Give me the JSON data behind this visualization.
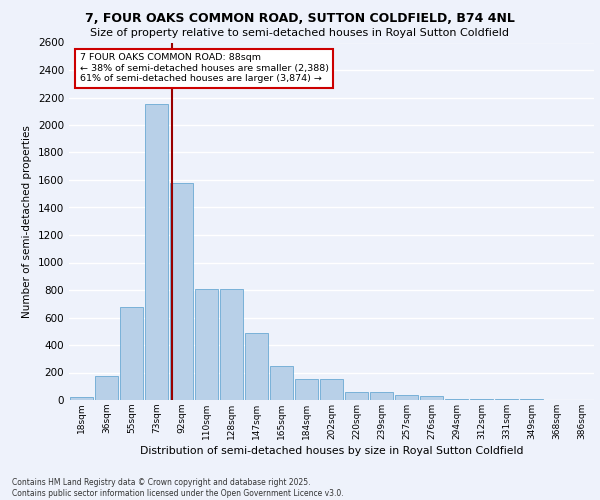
{
  "title": "7, FOUR OAKS COMMON ROAD, SUTTON COLDFIELD, B74 4NL",
  "subtitle": "Size of property relative to semi-detached houses in Royal Sutton Coldfield",
  "xlabel": "Distribution of semi-detached houses by size in Royal Sutton Coldfield",
  "ylabel": "Number of semi-detached properties",
  "categories": [
    "18sqm",
    "36sqm",
    "55sqm",
    "73sqm",
    "92sqm",
    "110sqm",
    "128sqm",
    "147sqm",
    "165sqm",
    "184sqm",
    "202sqm",
    "220sqm",
    "239sqm",
    "257sqm",
    "276sqm",
    "294sqm",
    "312sqm",
    "331sqm",
    "349sqm",
    "368sqm",
    "386sqm"
  ],
  "values": [
    25,
    175,
    675,
    2150,
    1575,
    810,
    810,
    490,
    250,
    150,
    150,
    55,
    55,
    35,
    30,
    10,
    5,
    5,
    5,
    3,
    2
  ],
  "bar_color": "#b8d0e8",
  "bar_edge_color": "#6aaad4",
  "vline_index": 4,
  "annotation_text": "7 FOUR OAKS COMMON ROAD: 88sqm\n← 38% of semi-detached houses are smaller (2,388)\n61% of semi-detached houses are larger (3,874) →",
  "vline_color": "#990000",
  "ylim": [
    0,
    2600
  ],
  "yticks": [
    0,
    200,
    400,
    600,
    800,
    1000,
    1200,
    1400,
    1600,
    1800,
    2000,
    2200,
    2400,
    2600
  ],
  "background_color": "#eef2fb",
  "grid_color": "#ffffff",
  "footer": "Contains HM Land Registry data © Crown copyright and database right 2025.\nContains public sector information licensed under the Open Government Licence v3.0."
}
